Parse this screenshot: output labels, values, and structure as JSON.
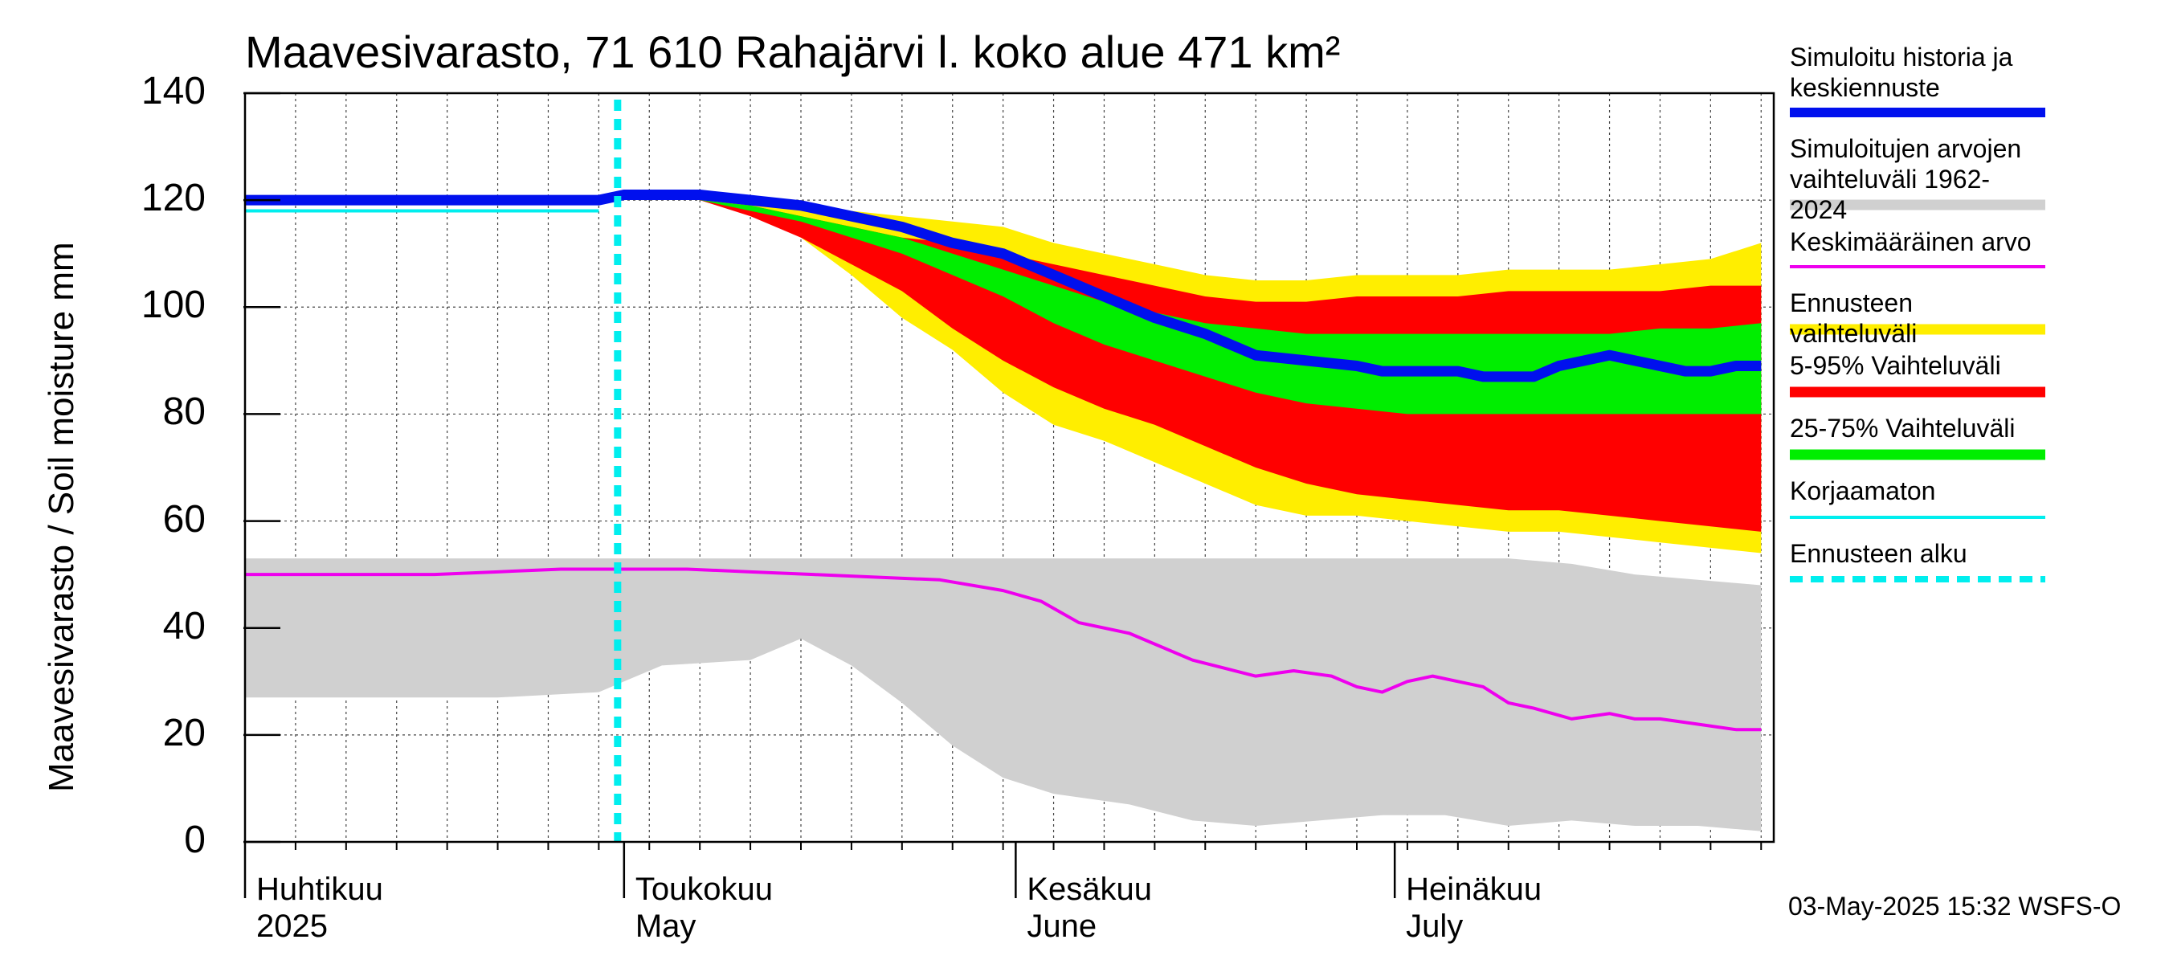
{
  "title": "Maavesivarasto, 71 610 Rahajärvi l. koko alue 471 km²",
  "footer": "03-May-2025 15:32 WSFS-O",
  "chart_data": {
    "type": "area",
    "title": "Maavesivarasto, 71 610 Rahajärvi l. koko alue 471 km²",
    "ylabel": "Maavesivarasto / Soil moisture   mm",
    "xlabel": "",
    "ylim": [
      0,
      140
    ],
    "yticks": [
      "0",
      "20",
      "40",
      "60",
      "80",
      "100",
      "120",
      "140"
    ],
    "grid": true,
    "x_start_date": "2025-04-01",
    "x_end_date": "2025-07-31",
    "forecast_start_day": 30,
    "months": [
      {
        "fi": "Huhtikuu",
        "en": "2025",
        "day": 0
      },
      {
        "fi": "Toukokuu",
        "en": "May",
        "day": 30
      },
      {
        "fi": "Kesäkuu",
        "en": "June",
        "day": 61
      },
      {
        "fi": "Heinäkuu",
        "en": "July",
        "day": 91
      }
    ],
    "legend": [
      {
        "label": "Simuloitu historia ja keskiennuste",
        "color": "#0010ee",
        "style": "thick"
      },
      {
        "label": "Simuloitujen arvojen vaihteluväli 1962-2024",
        "color": "#d0d0d0",
        "style": "band"
      },
      {
        "label": "Keskimääräinen arvo",
        "color": "#ee00ee",
        "style": "line"
      },
      {
        "label": "Ennusteen vaihteluväli",
        "color": "#ffee00",
        "style": "band"
      },
      {
        "label": "5-95% Vaihteluväli",
        "color": "#ff0000",
        "style": "band"
      },
      {
        "label": "25-75% Vaihteluväli",
        "color": "#00ee00",
        "style": "band"
      },
      {
        "label": "Korjaamaton",
        "color": "#00eeee",
        "style": "line"
      },
      {
        "label": "Ennusteen alku",
        "color": "#00eeee",
        "style": "dashed"
      }
    ],
    "series": [
      {
        "name": "Simuloitujen arvojen vaihteluväli 1962-2024",
        "kind": "band",
        "x": [
          0,
          10,
          20,
          28,
          33,
          40,
          44,
          48,
          52,
          56,
          60,
          64,
          70,
          75,
          80,
          85,
          90,
          95,
          100,
          105,
          110,
          115,
          120
        ],
        "upper": [
          53,
          53,
          53,
          53,
          53,
          53,
          53,
          53,
          53,
          53,
          53,
          53,
          53,
          53,
          53,
          53,
          53,
          53,
          53,
          52,
          50,
          49,
          48
        ],
        "lower": [
          27,
          27,
          27,
          28,
          33,
          34,
          38,
          33,
          26,
          18,
          12,
          9,
          7,
          4,
          3,
          4,
          5,
          5,
          3,
          4,
          3,
          3,
          2
        ]
      },
      {
        "name": "Ennusteen vaihteluväli",
        "kind": "band",
        "x": [
          30,
          36,
          40,
          44,
          48,
          52,
          56,
          60,
          64,
          68,
          72,
          76,
          80,
          84,
          88,
          92,
          96,
          100,
          104,
          108,
          112,
          116,
          120
        ],
        "upper": [
          121,
          121,
          120,
          119,
          118,
          117,
          116,
          115,
          112,
          110,
          108,
          106,
          105,
          105,
          106,
          106,
          106,
          107,
          107,
          107,
          108,
          109,
          112
        ],
        "lower": [
          121,
          120,
          118,
          113,
          106,
          98,
          92,
          84,
          78,
          75,
          71,
          67,
          63,
          61,
          61,
          60,
          59,
          58,
          58,
          57,
          56,
          55,
          54
        ]
      },
      {
        "name": "5-95% Vaihteluväli",
        "kind": "band",
        "x": [
          30,
          36,
          40,
          44,
          48,
          52,
          56,
          60,
          64,
          68,
          72,
          76,
          80,
          84,
          88,
          92,
          96,
          100,
          104,
          108,
          112,
          116,
          120
        ],
        "upper": [
          121,
          120,
          119,
          117,
          115,
          113,
          112,
          110,
          108,
          106,
          104,
          102,
          101,
          101,
          102,
          102,
          102,
          103,
          103,
          103,
          103,
          104,
          104
        ],
        "lower": [
          121,
          120,
          117,
          113,
          108,
          103,
          96,
          90,
          85,
          81,
          78,
          74,
          70,
          67,
          65,
          64,
          63,
          62,
          62,
          61,
          60,
          59,
          58
        ]
      },
      {
        "name": "25-75% Vaihteluväli",
        "kind": "band",
        "x": [
          30,
          36,
          40,
          44,
          48,
          52,
          56,
          60,
          64,
          68,
          72,
          76,
          80,
          84,
          88,
          92,
          96,
          100,
          104,
          108,
          112,
          116,
          120
        ],
        "upper": [
          121,
          120,
          119,
          117,
          115,
          113,
          110,
          107,
          104,
          101,
          99,
          97,
          96,
          95,
          95,
          95,
          95,
          95,
          95,
          95,
          96,
          96,
          97
        ],
        "lower": [
          121,
          120,
          118,
          116,
          113,
          110,
          106,
          102,
          97,
          93,
          90,
          87,
          84,
          82,
          81,
          80,
          80,
          80,
          80,
          80,
          80,
          80,
          80
        ]
      },
      {
        "name": "Keskimääräinen arvo",
        "kind": "line",
        "x": [
          0,
          10,
          15,
          20,
          25,
          30,
          35,
          40,
          45,
          50,
          55,
          60,
          63,
          66,
          70,
          75,
          80,
          83,
          86,
          88,
          90,
          92,
          94,
          96,
          98,
          100,
          102,
          105,
          108,
          110,
          112,
          115,
          118,
          120
        ],
        "y": [
          50,
          50,
          50,
          50.5,
          51,
          51,
          51,
          50.5,
          50,
          49.5,
          49,
          47,
          45,
          41,
          39,
          34,
          31,
          32,
          31,
          29,
          28,
          30,
          31,
          30,
          29,
          26,
          25,
          23,
          24,
          23,
          23,
          22,
          21,
          21
        ]
      },
      {
        "name": "Korjaamaton",
        "kind": "line",
        "x": [
          0,
          5,
          10,
          15,
          20,
          25,
          28
        ],
        "y": [
          118,
          118,
          118,
          118,
          118,
          118,
          118
        ]
      },
      {
        "name": "Simuloitu historia ja keskiennuste",
        "kind": "line",
        "x": [
          0,
          5,
          10,
          15,
          20,
          25,
          28,
          30,
          33,
          36,
          40,
          44,
          48,
          52,
          56,
          60,
          64,
          68,
          72,
          76,
          80,
          84,
          88,
          90,
          92,
          94,
          96,
          98,
          100,
          102,
          104,
          106,
          108,
          110,
          112,
          114,
          116,
          118,
          120
        ],
        "y": [
          120,
          120,
          120,
          120,
          120,
          120,
          120,
          121,
          121,
          121,
          120,
          119,
          117,
          115,
          112,
          110,
          106,
          102,
          98,
          95,
          91,
          90,
          89,
          88,
          88,
          88,
          88,
          87,
          87,
          87,
          89,
          90,
          91,
          90,
          89,
          88,
          88,
          89,
          89
        ]
      }
    ]
  }
}
